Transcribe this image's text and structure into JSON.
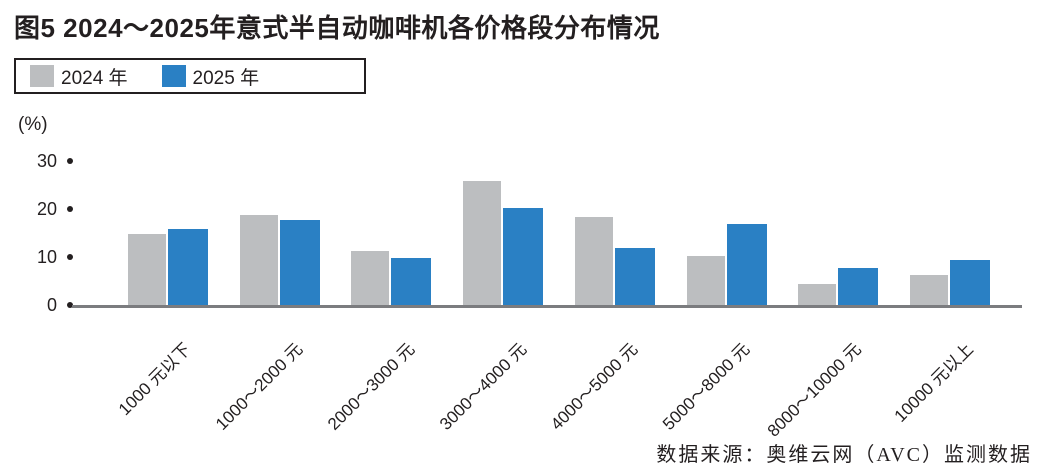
{
  "figure": {
    "title": "图5 2024～2025年意式半自动咖啡机各价格段分布情况",
    "unit_label": "(%)",
    "source": "数据来源：奥维云网（AVC）监测数据"
  },
  "legend": {
    "items": [
      {
        "label": "2024 年",
        "color": "#bcbec0"
      },
      {
        "label": "2025 年",
        "color": "#2a80c4"
      }
    ]
  },
  "chart_data": {
    "type": "bar",
    "title": "图5 2024～2025年意式半自动咖啡机各价格段分布情况",
    "categories": [
      "1000 元以下",
      "1000～2000 元",
      "2000～3000 元",
      "3000～4000 元",
      "4000～5000 元",
      "5000～8000 元",
      "8000～10000 元",
      "10000 元以上"
    ],
    "series": [
      {
        "name": "2024 年",
        "color": "#bcbec0",
        "values": [
          15,
          19,
          11.5,
          26,
          18.5,
          10.5,
          4.5,
          6.5
        ]
      },
      {
        "name": "2025 年",
        "color": "#2a80c4",
        "values": [
          16,
          18,
          10,
          20.5,
          12,
          17,
          8,
          9.5
        ]
      }
    ],
    "xlabel": "",
    "ylabel": "(%)",
    "yticks": [
      30,
      20,
      10,
      0
    ],
    "ylim": [
      0,
      33
    ],
    "grid": false,
    "legend_position": "top-left",
    "colors": {
      "axis_line": "#7b7c7f",
      "tick_dot": "#231f20",
      "text": "#231f20"
    }
  }
}
